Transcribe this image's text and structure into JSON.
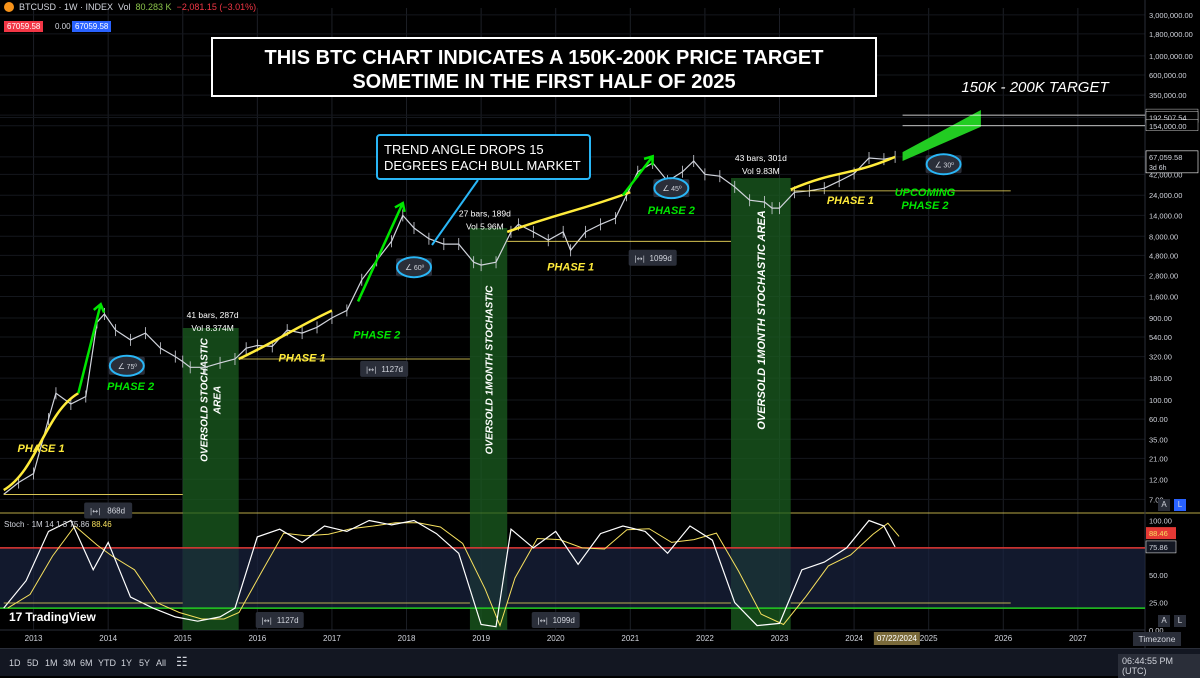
{
  "header": {
    "symbol": "BTCUSD · 1W · INDEX",
    "vol_label": "Vol",
    "vol_value": "80.283 K",
    "change": "−2,081.15 (−3.01%)",
    "bid": "67059.58",
    "spread": "0.00",
    "ask": "67059.58"
  },
  "title_box": {
    "line1": "THIS BTC CHART INDICATES A 150K-200K PRICE TARGET",
    "line2": "SOMETIME IN THE FIRST HALF OF 2025"
  },
  "trend_box": {
    "line1": "TREND ANGLE DROPS 15",
    "line2": "DEGREES EACH BULL MARKET"
  },
  "target_label": "150K - 200K TARGET",
  "colors": {
    "background": "#000000",
    "candles": "#d1d4dc",
    "phase1_curve": "#ffeb3b",
    "phase2_arrow": "#00e600",
    "oversold_zone": "#1b5e20",
    "target_arrow": "#22cc22",
    "stoch_k": "#ffffff",
    "stoch_d": "#f6e05e",
    "stoch_upper": "#e53935",
    "stoch_lower": "#22cc22",
    "annotation_blue": "#29b6f6"
  },
  "chart_data": {
    "type": "line",
    "price_scale": "log",
    "price_axis_ticks": [
      "3,000,000.00",
      "1,800,000.00",
      "1,000,000.00",
      "600,000.00",
      "350,000.00",
      "205,000.00",
      "192,507.54",
      "154,000.00",
      "67,059.58",
      "42,000.00",
      "24,000.00",
      "14,000.00",
      "8,000.00",
      "4,800.00",
      "2,800.00",
      "1,600.00",
      "900.00",
      "540.00",
      "320.00",
      "180.00",
      "100.00",
      "60.00",
      "35.00",
      "21.00",
      "12.00",
      "7.00"
    ],
    "time_axis_ticks": [
      "2013",
      "2014",
      "2015",
      "2016",
      "2017",
      "2018",
      "2019",
      "2020",
      "2021",
      "2022",
      "2023",
      "2024",
      "2025",
      "2026",
      "2027"
    ],
    "current_date_label": "07/22/2024",
    "current_price": "67,059.58",
    "countdown": "3d 6h",
    "series": [
      {
        "name": "BTCUSD",
        "x": [
          2012.6,
          2012.8,
          2013.0,
          2013.2,
          2013.3,
          2013.5,
          2013.7,
          2013.85,
          2013.95,
          2014.1,
          2014.3,
          2014.5,
          2014.7,
          2014.9,
          2015.0,
          2015.1,
          2015.3,
          2015.5,
          2015.7,
          2015.85,
          2016.0,
          2016.2,
          2016.4,
          2016.6,
          2016.8,
          2017.0,
          2017.2,
          2017.4,
          2017.6,
          2017.8,
          2017.95,
          2018.1,
          2018.3,
          2018.5,
          2018.7,
          2018.9,
          2019.0,
          2019.2,
          2019.4,
          2019.5,
          2019.7,
          2019.9,
          2020.1,
          2020.2,
          2020.4,
          2020.6,
          2020.8,
          2020.95,
          2021.1,
          2021.3,
          2021.5,
          2021.7,
          2021.85,
          2022.0,
          2022.2,
          2022.4,
          2022.6,
          2022.8,
          2022.9,
          2023.0,
          2023.2,
          2023.4,
          2023.6,
          2023.8,
          2024.0,
          2024.2,
          2024.4,
          2024.55
        ],
        "y": [
          8,
          11,
          14,
          60,
          120,
          90,
          110,
          800,
          1000,
          650,
          500,
          600,
          400,
          320,
          280,
          240,
          240,
          270,
          300,
          400,
          430,
          420,
          650,
          600,
          700,
          900,
          1100,
          2500,
          4200,
          7000,
          14000,
          10000,
          7500,
          6500,
          6500,
          4000,
          3700,
          4000,
          9000,
          11000,
          9000,
          7200,
          9000,
          5500,
          9000,
          11000,
          13000,
          24000,
          45000,
          57000,
          35000,
          45000,
          60000,
          42000,
          40000,
          30000,
          21000,
          20000,
          17000,
          17000,
          26000,
          27000,
          29000,
          35000,
          43000,
          65000,
          63000,
          67000
        ]
      },
      {
        "name": "Stoch",
        "x": [
          2012.6,
          2012.9,
          2013.2,
          2013.5,
          2013.8,
          2014.0,
          2014.3,
          2014.6,
          2014.9,
          2015.2,
          2015.5,
          2015.7,
          2016.0,
          2016.3,
          2016.6,
          2016.9,
          2017.2,
          2017.5,
          2017.8,
          2018.1,
          2018.4,
          2018.7,
          2019.0,
          2019.2,
          2019.4,
          2019.7,
          2020.0,
          2020.3,
          2020.6,
          2020.9,
          2021.2,
          2021.5,
          2021.8,
          2022.1,
          2022.4,
          2022.7,
          2023.0,
          2023.3,
          2023.6,
          2023.9,
          2024.2,
          2024.4,
          2024.55
        ],
        "y": [
          20,
          45,
          90,
          100,
          55,
          80,
          30,
          20,
          12,
          8,
          12,
          20,
          85,
          92,
          80,
          95,
          90,
          100,
          96,
          100,
          88,
          70,
          5,
          3,
          92,
          75,
          90,
          60,
          88,
          95,
          90,
          70,
          95,
          82,
          25,
          4,
          6,
          55,
          62,
          75,
          100,
          95,
          75.86
        ]
      }
    ],
    "stoch_indicator": {
      "label": "Stoch · 1M 14 1 3",
      "k": "75.86",
      "d": "88.46",
      "axis_ticks": [
        "100.00",
        "88.46",
        "75.86",
        "50.00",
        "25.00",
        "0.00"
      ],
      "upper_band": 75,
      "lower_band": 20
    },
    "annotations": [
      {
        "kind": "phase1",
        "label": "PHASE 1",
        "x": 2013.1,
        "y": 25
      },
      {
        "kind": "phase2",
        "label": "PHASE 2",
        "x": 2014.3,
        "y": 130
      },
      {
        "kind": "phase1",
        "label": "PHASE 1",
        "x": 2016.6,
        "y": 280
      },
      {
        "kind": "phase2",
        "label": "PHASE 2",
        "x": 2017.6,
        "y": 520
      },
      {
        "kind": "phase1",
        "label": "PHASE 1",
        "x": 2020.2,
        "y": 3200
      },
      {
        "kind": "phase2",
        "label": "PHASE 2",
        "x": 2021.55,
        "y": 14500
      },
      {
        "kind": "phase1",
        "label": "PHASE 1",
        "x": 2023.95,
        "y": 19000
      },
      {
        "kind": "phase2_upcoming",
        "label1": "UPCOMING",
        "label2": "PHASE 2",
        "x": 2024.95,
        "y": 19000
      },
      {
        "kind": "oversold",
        "label1": "OVERSOLD STOCHASTIC",
        "label2": "AREA",
        "x0": 2015.0,
        "x1": 2015.75
      },
      {
        "kind": "oversold",
        "label1": "OVERSOLD 1MONTH STOCHASTIC",
        "x0": 2018.85,
        "x1": 2019.35
      },
      {
        "kind": "oversold",
        "label1": "OVERSOLD 1MONTH STOCHASTIC AREA",
        "x0": 2022.35,
        "x1": 2023.15
      }
    ],
    "angles": [
      {
        "label": "75º",
        "x": 2014.25,
        "y": 250
      },
      {
        "label": "60º",
        "x": 2018.1,
        "y": 3500
      },
      {
        "label": "45º",
        "x": 2021.55,
        "y": 29000
      },
      {
        "label": "30º",
        "x": 2025.2,
        "y": 55000
      }
    ],
    "stats": [
      {
        "line1": "41 bars, 287d",
        "line2": "Vol 8.374M",
        "x": 2015.4,
        "y": 900
      },
      {
        "line1": "27 bars, 189d",
        "line2": "Vol 5.96M",
        "x": 2019.05,
        "y": 13500
      },
      {
        "line1": "43 bars, 301d",
        "line2": "Vol 9.83M",
        "x": 2022.75,
        "y": 60000
      }
    ],
    "ranges": [
      {
        "label": "868d",
        "x": 2014.0,
        "y": 5.2
      },
      {
        "label": "1127d",
        "x": 2017.7,
        "y": 230
      },
      {
        "label": "1099d",
        "x": 2021.3,
        "y": 4500
      },
      {
        "label": "1127d",
        "x": 2016.3,
        "pane": "stoch"
      },
      {
        "label": "1099d",
        "x": 2020.0,
        "pane": "stoch"
      }
    ]
  },
  "bottombar": {
    "timeframes": [
      "1D",
      "5D",
      "1M",
      "3M",
      "6M",
      "YTD",
      "1Y",
      "5Y",
      "All"
    ],
    "timezone": "Timezone",
    "clock": "06:44:55 PM (UTC)",
    "scale_a": "A",
    "scale_l": "L"
  },
  "brand": "TradingView"
}
